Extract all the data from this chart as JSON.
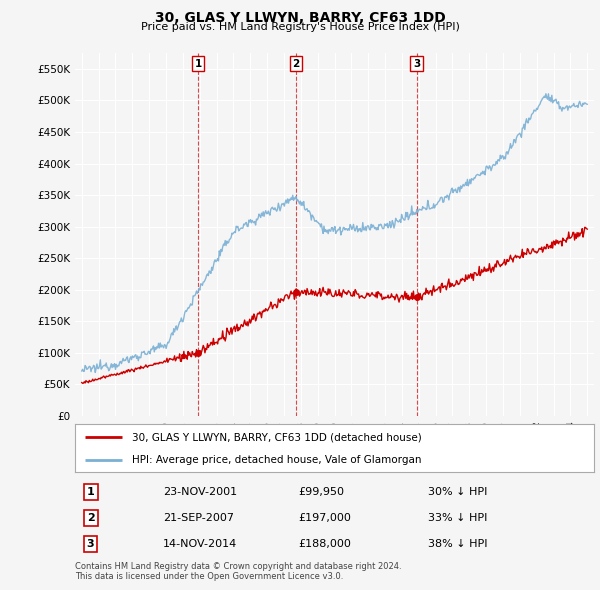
{
  "title": "30, GLAS Y LLWYN, BARRY, CF63 1DD",
  "subtitle": "Price paid vs. HM Land Registry's House Price Index (HPI)",
  "ylabel_ticks": [
    "£0",
    "£50K",
    "£100K",
    "£150K",
    "£200K",
    "£250K",
    "£300K",
    "£350K",
    "£400K",
    "£450K",
    "£500K",
    "£550K"
  ],
  "ytick_values": [
    0,
    50000,
    100000,
    150000,
    200000,
    250000,
    300000,
    350000,
    400000,
    450000,
    500000,
    550000
  ],
  "ylim": [
    0,
    575000
  ],
  "xlim_start": 1994.6,
  "xlim_end": 2025.4,
  "sale_dates": [
    2001.9,
    2007.72,
    2014.87
  ],
  "sale_prices": [
    99950,
    197000,
    188000
  ],
  "sale_labels": [
    "1",
    "2",
    "3"
  ],
  "legend_entries": [
    "30, GLAS Y LLWYN, BARRY, CF63 1DD (detached house)",
    "HPI: Average price, detached house, Vale of Glamorgan"
  ],
  "sale_line_color": "#cc0000",
  "hpi_line_color": "#7ab0d4",
  "sale_marker_color": "#cc0000",
  "table_rows": [
    [
      "1",
      "23-NOV-2001",
      "£99,950",
      "30% ↓ HPI"
    ],
    [
      "2",
      "21-SEP-2007",
      "£197,000",
      "33% ↓ HPI"
    ],
    [
      "3",
      "14-NOV-2014",
      "£188,000",
      "38% ↓ HPI"
    ]
  ],
  "footnote": "Contains HM Land Registry data © Crown copyright and database right 2024.\nThis data is licensed under the Open Government Licence v3.0.",
  "background_color": "#f5f5f5",
  "grid_color": "#ffffff",
  "vline_color": "#cc0000"
}
